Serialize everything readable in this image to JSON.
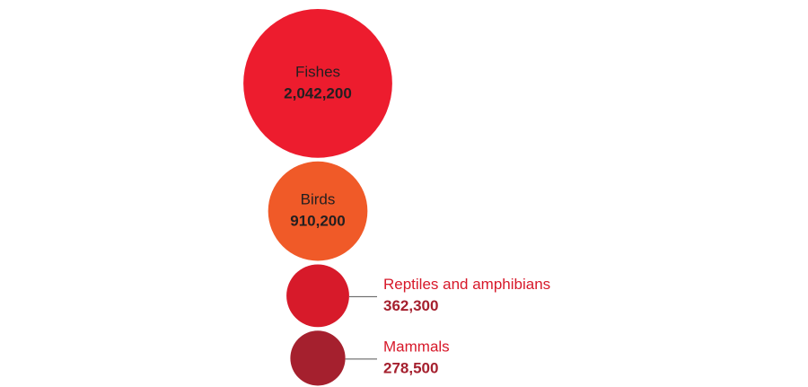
{
  "chart_data": {
    "type": "bubble",
    "categories": [
      "Fishes",
      "Birds",
      "Reptiles and amphibians",
      "Mammals"
    ],
    "values": [
      2042200,
      910200,
      362300,
      278500
    ],
    "value_labels": [
      "2,042,200",
      "910,200",
      "362,300",
      "278,500"
    ],
    "colors": [
      "#ed1c2e",
      "#f05a28",
      "#d71a2a",
      "#a5202e"
    ]
  }
}
